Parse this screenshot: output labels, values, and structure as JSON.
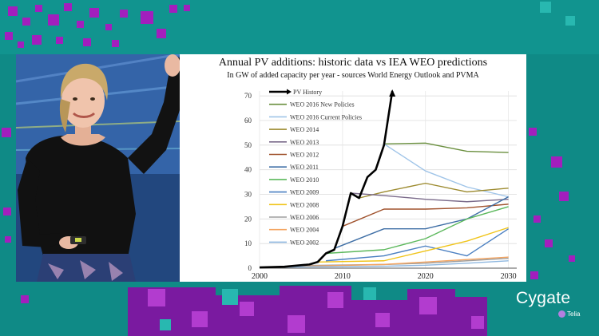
{
  "slide": {
    "title": "Annual PV additions: historic data vs IEA WEO predictions",
    "subtitle": "In GW of added capacity per year - sources World Energy Outlook and PVMA"
  },
  "brand": {
    "name": "Cygate",
    "sub": "Telia"
  },
  "chart_data": {
    "type": "line",
    "title": "Annual PV additions: historic data vs IEA WEO predictions",
    "subtitle": "In GW of added capacity per year - sources World Energy Outlook and PVMA",
    "xlabel": "",
    "ylabel": "",
    "xlim": [
      2000,
      2031
    ],
    "ylim": [
      0,
      72
    ],
    "xticks": [
      2000,
      2010,
      2020,
      2030
    ],
    "yticks": [
      0,
      10,
      20,
      30,
      40,
      50,
      60,
      70
    ],
    "grid": true,
    "legend": "top-left",
    "series": [
      {
        "name": "PV History",
        "color": "#000000",
        "x": [
          2000,
          2003,
          2006,
          2007,
          2008,
          2009,
          2010,
          2011,
          2012,
          2013,
          2014,
          2015,
          2016
        ],
        "y": [
          0.3,
          0.6,
          1.5,
          2.5,
          6,
          7.5,
          17,
          30.5,
          28.5,
          37,
          40,
          50,
          72
        ]
      },
      {
        "name": "WEO 2016 New Policies",
        "color": "#6a8f3e",
        "x": [
          2015,
          2020,
          2025,
          2030
        ],
        "y": [
          50.5,
          50.8,
          47.5,
          47
        ]
      },
      {
        "name": "WEO 2016 Current Policies",
        "color": "#9fc4e8",
        "x": [
          2015,
          2020,
          2025,
          2030
        ],
        "y": [
          50.5,
          39.5,
          33,
          29
        ]
      },
      {
        "name": "WEO 2014",
        "color": "#9c8a2e",
        "x": [
          2012,
          2015,
          2020,
          2025,
          2030
        ],
        "y": [
          28.5,
          31,
          34.5,
          31,
          32.5
        ]
      },
      {
        "name": "WEO 2013",
        "color": "#7a6a8a",
        "x": [
          2011,
          2015,
          2020,
          2025,
          2030
        ],
        "y": [
          30.5,
          29.5,
          28,
          27,
          28
        ]
      },
      {
        "name": "WEO 2012",
        "color": "#a0522d",
        "x": [
          2010,
          2015,
          2020,
          2025,
          2030
        ],
        "y": [
          17,
          24,
          24,
          24.5,
          26
        ]
      },
      {
        "name": "WEO 2011",
        "color": "#3f6fa6",
        "x": [
          2009,
          2015,
          2020,
          2025,
          2030
        ],
        "y": [
          8,
          16,
          16,
          20,
          29
        ]
      },
      {
        "name": "WEO 2010",
        "color": "#5cb85c",
        "x": [
          2008,
          2015,
          2020,
          2025,
          2030
        ],
        "y": [
          6,
          7.5,
          12,
          20,
          25
        ]
      },
      {
        "name": "WEO 2009",
        "color": "#4a7fc1",
        "x": [
          2008,
          2015,
          2020,
          2025,
          2030
        ],
        "y": [
          3,
          5,
          9,
          5,
          16
        ]
      },
      {
        "name": "WEO 2008",
        "color": "#f0c419",
        "x": [
          2007,
          2015,
          2020,
          2025,
          2030
        ],
        "y": [
          2.5,
          3,
          7,
          11,
          16.5
        ]
      },
      {
        "name": "WEO 2006",
        "color": "#9e9e9e",
        "x": [
          2004,
          2015,
          2020,
          2025,
          2030
        ],
        "y": [
          1,
          1.5,
          2,
          3,
          4
        ]
      },
      {
        "name": "WEO 2004",
        "color": "#f4a460",
        "x": [
          2003,
          2015,
          2020,
          2025,
          2030
        ],
        "y": [
          0.6,
          1.5,
          2.5,
          3.5,
          4.5
        ]
      },
      {
        "name": "WEO 2002",
        "color": "#8fb8e0",
        "x": [
          2001,
          2015,
          2020,
          2025,
          2030
        ],
        "y": [
          0.4,
          0.8,
          1.2,
          2,
          3
        ]
      }
    ]
  }
}
